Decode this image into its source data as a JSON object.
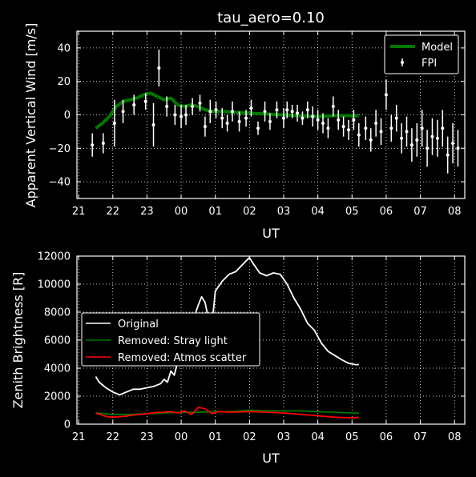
{
  "chart_data": [
    {
      "type": "line",
      "title": "tau_aero=0.10",
      "xlabel": "UT",
      "ylabel": "Apparent Vertical Wind [m/s]",
      "x_ticks": [
        "21",
        "22",
        "23",
        "00",
        "01",
        "02",
        "03",
        "04",
        "05",
        "06",
        "07",
        "08"
      ],
      "y_ticks": [
        "40",
        "20",
        "0",
        "−20",
        "−40"
      ],
      "y_tick_values": [
        40,
        20,
        0,
        -20,
        -40
      ],
      "xlim": [
        20.95,
        32.3
      ],
      "ylim": [
        -50,
        50
      ],
      "grid": true,
      "legend": {
        "placement": "upper right",
        "entries": [
          "Model",
          "FPI"
        ]
      },
      "series": [
        {
          "name": "Model",
          "color": "#007700",
          "x": [
            21.5,
            21.7,
            21.9,
            22.1,
            22.3,
            22.5,
            22.7,
            22.9,
            23.1,
            23.3,
            23.5,
            23.7,
            23.9,
            24.1,
            24.3,
            24.5,
            24.7,
            24.9,
            25.2,
            25.6,
            26.0,
            26.5,
            27.0,
            27.5,
            28.0,
            28.5,
            29.0,
            29.2
          ],
          "values": [
            -8,
            -5,
            -1,
            5,
            8,
            9,
            10,
            12,
            13,
            11,
            9,
            10,
            6,
            5,
            6,
            5,
            3,
            2,
            2,
            1.5,
            1,
            0.5,
            0,
            -0.5,
            -1,
            -0.5,
            -0.5,
            -0.5
          ]
        },
        {
          "name": "FPI",
          "color": "#ffffff",
          "x": [
            21.4,
            21.72,
            22.05,
            22.3,
            22.62,
            22.96,
            23.19,
            23.35,
            23.58,
            23.82,
            24.0,
            24.14,
            24.33,
            24.55,
            24.7,
            24.85,
            25.02,
            25.2,
            25.35,
            25.5,
            25.7,
            25.9,
            26.05,
            26.25,
            26.45,
            26.6,
            26.8,
            27.0,
            27.1,
            27.25,
            27.4,
            27.55,
            27.7,
            27.85,
            28.0,
            28.15,
            28.3,
            28.45,
            28.6,
            28.75,
            28.9,
            29.05,
            29.2,
            29.4,
            29.55,
            29.7,
            29.85,
            30.0,
            30.15,
            30.3,
            30.45,
            30.6,
            30.75,
            30.9,
            31.05,
            31.2,
            31.35,
            31.5,
            31.65,
            31.8,
            31.95,
            32.1
          ],
          "values": [
            -18,
            -17,
            -5,
            2,
            6,
            8,
            -6,
            28,
            5,
            0,
            -1,
            0,
            5,
            7,
            -7,
            2,
            3,
            -2,
            -5,
            2,
            -4,
            -2,
            4,
            -8,
            2,
            -4,
            3,
            -2,
            3,
            2,
            1,
            -2,
            3,
            -1,
            -3,
            -5,
            -8,
            5,
            -3,
            -7,
            -9,
            -3,
            -12,
            -8,
            -15,
            -5,
            -10,
            12,
            -8,
            -2,
            -14,
            -10,
            -18,
            -15,
            -8,
            -20,
            -13,
            -14,
            -8,
            -24,
            -17,
            -20
          ],
          "errors": [
            7,
            6,
            14,
            7,
            6,
            5,
            13,
            11,
            6,
            6,
            7,
            6,
            5,
            5,
            6,
            7,
            5,
            6,
            5,
            6,
            6,
            5,
            5,
            4,
            6,
            5,
            5,
            6,
            5,
            4,
            5,
            4,
            5,
            6,
            6,
            6,
            6,
            6,
            6,
            6,
            6,
            6,
            7,
            7,
            7,
            8,
            8,
            9,
            8,
            8,
            9,
            9,
            10,
            10,
            11,
            11,
            11,
            11,
            11,
            11,
            12,
            11
          ]
        }
      ]
    },
    {
      "type": "line",
      "title": "",
      "xlabel": "UT",
      "ylabel": "Zenith Brightness [R]",
      "x_ticks": [
        "21",
        "22",
        "23",
        "00",
        "01",
        "02",
        "03",
        "04",
        "05",
        "06",
        "07",
        "08"
      ],
      "y_ticks": [
        "12000",
        "10000",
        "8000",
        "6000",
        "4000",
        "2000",
        "0"
      ],
      "y_tick_values": [
        12000,
        10000,
        8000,
        6000,
        4000,
        2000,
        0
      ],
      "xlim": [
        20.95,
        32.3
      ],
      "ylim": [
        0,
        12000
      ],
      "grid": true,
      "legend": {
        "placement": "center left",
        "entries": [
          "Original",
          "Removed: Stray light",
          "Removed: Atmos scatter"
        ]
      },
      "series": [
        {
          "name": "Original",
          "color": "#ffffff",
          "x": [
            21.5,
            21.6,
            21.8,
            22.0,
            22.2,
            22.4,
            22.6,
            22.8,
            23.0,
            23.2,
            23.4,
            23.5,
            23.6,
            23.7,
            23.8,
            23.9,
            24.0,
            24.1,
            24.2,
            24.3,
            24.4,
            24.5,
            24.6,
            24.7,
            24.8,
            24.9,
            25.0,
            25.2,
            25.4,
            25.6,
            25.8,
            26.0,
            26.1,
            26.3,
            26.5,
            26.7,
            26.9,
            27.1,
            27.3,
            27.5,
            27.7,
            27.9,
            28.1,
            28.3,
            28.5,
            28.7,
            28.9,
            29.1,
            29.2
          ],
          "values": [
            3400,
            3000,
            2600,
            2300,
            2100,
            2300,
            2500,
            2500,
            2600,
            2700,
            2900,
            3200,
            3000,
            3800,
            3500,
            4500,
            4300,
            5200,
            6000,
            6500,
            7800,
            8500,
            9100,
            8700,
            7500,
            7000,
            9500,
            10200,
            10700,
            10900,
            11400,
            11900,
            11500,
            10800,
            10600,
            10800,
            10700,
            10000,
            9000,
            8200,
            7200,
            6700,
            5800,
            5200,
            4900,
            4600,
            4350,
            4250,
            4250
          ]
        },
        {
          "name": "Removed: Stray light",
          "color": "#007700",
          "x": [
            21.5,
            22.0,
            22.5,
            23.0,
            23.5,
            24.0,
            24.5,
            25.0,
            25.5,
            26.0,
            26.5,
            27.0,
            27.5,
            28.0,
            28.5,
            29.0,
            29.2
          ],
          "values": [
            800,
            700,
            700,
            750,
            800,
            850,
            850,
            900,
            900,
            1000,
            950,
            950,
            950,
            900,
            850,
            800,
            800
          ]
        },
        {
          "name": "Removed: Atmos scatter",
          "color": "#ff0000",
          "x": [
            21.5,
            21.8,
            22.0,
            22.3,
            22.6,
            23.0,
            23.3,
            23.5,
            23.7,
            23.9,
            24.1,
            24.3,
            24.5,
            24.7,
            24.9,
            25.1,
            25.5,
            26.0,
            26.5,
            27.0,
            27.5,
            28.0,
            28.5,
            29.0,
            29.2
          ],
          "values": [
            800,
            550,
            500,
            550,
            650,
            750,
            850,
            850,
            900,
            800,
            950,
            700,
            1200,
            1100,
            750,
            900,
            850,
            900,
            850,
            800,
            700,
            600,
            500,
            450,
            500
          ]
        }
      ]
    }
  ]
}
